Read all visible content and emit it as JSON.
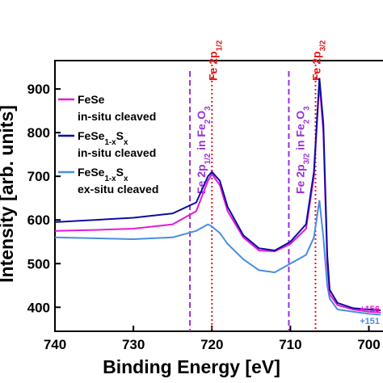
{
  "chart_data": {
    "type": "line",
    "xlabel": "Binding Energy [eV]",
    "ylabel": "Intensity [arb. units]",
    "x": [
      740,
      735,
      730,
      725,
      722,
      720.5,
      720,
      719,
      718,
      716,
      714,
      712,
      710,
      708,
      707,
      706.3,
      705.8,
      705.3,
      705,
      704,
      702,
      700,
      698.5
    ],
    "series": [
      {
        "name_parts": [
          "FeSe"
        ],
        "note": "in-situ cleaved",
        "color": "#e619d6",
        "offset_label": "+156",
        "values": [
          575,
          577,
          580,
          590,
          620,
          690,
          705,
          680,
          620,
          560,
          530,
          528,
          545,
          580,
          700,
          915,
          800,
          500,
          430,
          405,
          395,
          390,
          388
        ]
      },
      {
        "name_parts": [
          "FeSe",
          "1-x",
          "S",
          "x"
        ],
        "note": "in-situ cleaved",
        "color": "#0a0f9e",
        "values": [
          595,
          600,
          605,
          615,
          640,
          700,
          710,
          690,
          630,
          565,
          535,
          530,
          550,
          590,
          710,
          925,
          820,
          520,
          440,
          410,
          398,
          395,
          393
        ]
      },
      {
        "name_parts": [
          "FeSe",
          "1-x",
          "S",
          "x"
        ],
        "note": "ex-situ cleaved",
        "color": "#4a8de0",
        "offset_label": "+151",
        "values": [
          560,
          558,
          556,
          560,
          575,
          590,
          585,
          570,
          545,
          510,
          485,
          480,
          500,
          520,
          560,
          645,
          560,
          450,
          420,
          395,
          390,
          385,
          383
        ]
      }
    ],
    "annotations": [
      {
        "x": 722.8,
        "color": "#9b30d9",
        "style": "dashed",
        "parts": [
          "Fe 2p",
          "1/2",
          " in Fe",
          "2",
          "O",
          "3"
        ]
      },
      {
        "x": 710.2,
        "color": "#9b30d9",
        "style": "dashed",
        "parts": [
          "Fe 2p",
          "3/2",
          " in Fe",
          "2",
          "O",
          "3"
        ]
      },
      {
        "x": 720.0,
        "color": "#e01b1b",
        "style": "dotted",
        "parts": [
          "Fe 2p",
          "1/2"
        ]
      },
      {
        "x": 706.8,
        "color": "#e01b1b",
        "style": "dotted",
        "parts": [
          "Fe 2p",
          "3/2"
        ]
      }
    ],
    "xlim": [
      740,
      698.2
    ],
    "xticks": [
      740,
      730,
      720,
      710,
      700
    ],
    "ylim": [
      345,
      965
    ],
    "yticks": [
      400,
      500,
      600,
      700,
      800,
      900
    ]
  }
}
